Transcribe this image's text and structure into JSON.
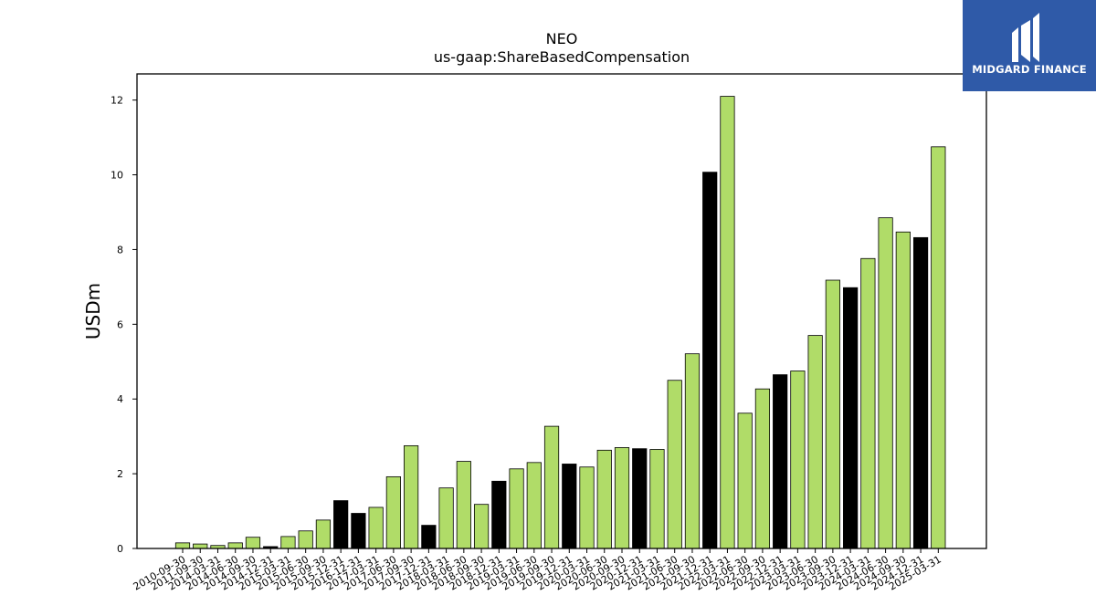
{
  "brand": {
    "name": "MIDGARD FINANCE",
    "color": "#2f5aa8"
  },
  "chart_data": {
    "type": "bar",
    "title": "NEO",
    "subtitle": "us-gaap:ShareBasedCompensation",
    "xlabel": "",
    "ylabel": "USDm",
    "ylim": [
      0,
      12.7
    ],
    "yticks": [
      0,
      2,
      4,
      6,
      8,
      10,
      12
    ],
    "grid": false,
    "colors": {
      "default": "#b0dc68",
      "highlight": "#000000"
    },
    "categories": [
      "2010-09-30",
      "2011-09-30",
      "2014-03-31",
      "2014-06-30",
      "2014-09-30",
      "2014-12-31",
      "2015-03-31",
      "2015-06-30",
      "2015-09-30",
      "2015-12-31",
      "2016-12-31",
      "2017-03-31",
      "2017-06-30",
      "2017-09-30",
      "2017-12-31",
      "2018-03-31",
      "2018-06-30",
      "2018-09-30",
      "2018-12-31",
      "2019-03-31",
      "2019-06-30",
      "2019-09-30",
      "2019-12-31",
      "2020-03-31",
      "2020-06-30",
      "2020-09-30",
      "2020-12-31",
      "2021-03-31",
      "2021-06-30",
      "2021-09-30",
      "2021-12-31",
      "2022-03-31",
      "2022-06-30",
      "2022-09-30",
      "2022-12-31",
      "2023-03-31",
      "2023-06-30",
      "2023-09-30",
      "2023-12-31",
      "2024-03-31",
      "2024-06-30",
      "2024-09-30",
      "2024-12-31",
      "2025-03-31"
    ],
    "xtick_labels": [
      "2010-09-30",
      "2011-09-30",
      "2014-03-31",
      "2014-06-30",
      "2014-09-30",
      "2014-12-31",
      "2015-03-31",
      "2015-06-30",
      "2015-09-30",
      "2015-12-31",
      "2016-12-31",
      "2017-03-31",
      "2017-06-30",
      "2017-09-30",
      "2017-12-31",
      "2018-03-31",
      "2018-06-30",
      "2018-09-30",
      "2018-12-31",
      "2019-03-31",
      "2019-06-30",
      "2019-09-30",
      "2019-12-31",
      "2020-03-31",
      "2020-06-30",
      "2020-09-30",
      "2020-12-31",
      "2021-03-31",
      "2021-06-30",
      "2021-09-30",
      "2021-12-31",
      "2022-03-31",
      "2022-06-30",
      "2022-09-30",
      "2022-12-31",
      "2023-03-31",
      "2023-06-30",
      "2023-09-30",
      "2023-12-31",
      "2024-03-31",
      "2024-06-30",
      "2024-09-30",
      "2024-12-31",
      "2025-03-31"
    ],
    "values": [
      0.15,
      0.12,
      0.08,
      0.15,
      0.3,
      0.05,
      0.32,
      0.47,
      0.76,
      1.28,
      0.94,
      1.1,
      1.92,
      2.75,
      0.62,
      1.62,
      2.33,
      1.18,
      1.8,
      2.13,
      2.3,
      3.27,
      2.26,
      2.18,
      2.63,
      2.7,
      2.67,
      2.65,
      4.5,
      5.21,
      10.07,
      12.1,
      3.62,
      4.27,
      4.65,
      4.75,
      5.7,
      7.18,
      6.98,
      7.76,
      8.85,
      8.47,
      8.32,
      10.75
    ],
    "highlighted": [
      false,
      false,
      false,
      false,
      false,
      true,
      false,
      false,
      false,
      true,
      true,
      false,
      false,
      false,
      true,
      false,
      false,
      false,
      true,
      false,
      false,
      false,
      true,
      false,
      false,
      false,
      true,
      false,
      false,
      false,
      true,
      false,
      false,
      false,
      true,
      false,
      false,
      false,
      true,
      false,
      false,
      false,
      true,
      false
    ]
  }
}
